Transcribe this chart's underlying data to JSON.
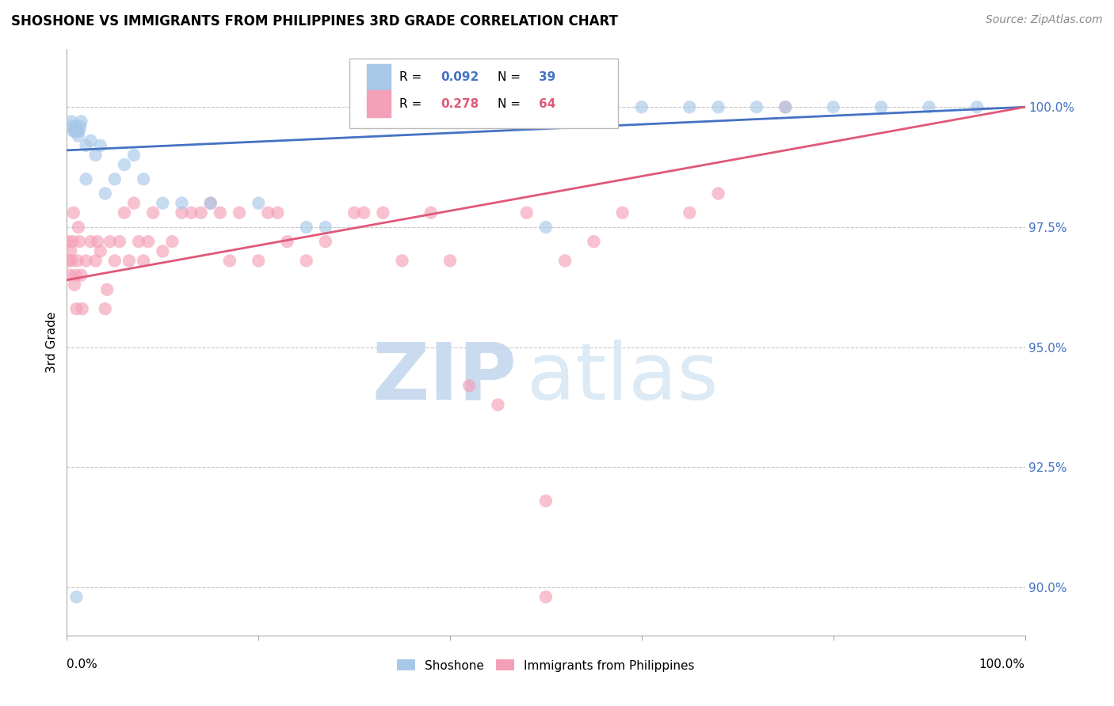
{
  "title": "SHOSHONE VS IMMIGRANTS FROM PHILIPPINES 3RD GRADE CORRELATION CHART",
  "source": "Source: ZipAtlas.com",
  "ylabel": "3rd Grade",
  "ymin": 89.0,
  "ymax": 101.2,
  "xmin": 0.0,
  "xmax": 100.0,
  "shoshone_color": "#a8c8e8",
  "philippines_color": "#f4a0b8",
  "shoshone_line_color": "#4472c4",
  "philippines_line_color": "#e05878",
  "shoshone_x": [
    0.5,
    0.6,
    0.7,
    0.8,
    0.9,
    1.0,
    1.1,
    1.2,
    1.3,
    1.4,
    1.5,
    2.0,
    2.5,
    3.0,
    3.5,
    5.0,
    6.0,
    7.0,
    8.0,
    55.0,
    60.0,
    65.0,
    68.0,
    72.0,
    75.0,
    80.0,
    85.0,
    90.0,
    95.0,
    2.0,
    4.0,
    10.0,
    12.0,
    15.0,
    20.0,
    25.0,
    27.0,
    1.0,
    50.0
  ],
  "shoshone_y": [
    99.7,
    99.6,
    99.5,
    99.5,
    99.6,
    99.5,
    99.5,
    99.4,
    99.5,
    99.6,
    99.7,
    99.2,
    99.3,
    99.0,
    99.2,
    98.5,
    98.8,
    99.0,
    98.5,
    100.0,
    100.0,
    100.0,
    100.0,
    100.0,
    100.0,
    100.0,
    100.0,
    100.0,
    100.0,
    98.5,
    98.2,
    98.0,
    98.0,
    98.0,
    98.0,
    97.5,
    97.5,
    89.8,
    97.5
  ],
  "philippines_x": [
    0.1,
    0.2,
    0.3,
    0.4,
    0.5,
    0.6,
    0.7,
    0.8,
    0.9,
    1.0,
    1.1,
    1.2,
    1.3,
    1.5,
    1.6,
    2.0,
    2.5,
    3.0,
    3.2,
    3.5,
    4.0,
    4.2,
    4.5,
    5.0,
    5.5,
    6.0,
    6.5,
    7.0,
    7.5,
    8.0,
    8.5,
    9.0,
    10.0,
    11.0,
    12.0,
    13.0,
    14.0,
    15.0,
    16.0,
    17.0,
    18.0,
    20.0,
    21.0,
    22.0,
    23.0,
    25.0,
    27.0,
    30.0,
    31.0,
    33.0,
    35.0,
    38.0,
    40.0,
    42.0,
    45.0,
    48.0,
    50.0,
    52.0,
    55.0,
    58.0,
    65.0,
    68.0,
    75.0,
    50.0
  ],
  "philippines_y": [
    97.2,
    96.8,
    96.5,
    97.0,
    96.8,
    97.2,
    97.8,
    96.3,
    96.5,
    95.8,
    96.8,
    97.5,
    97.2,
    96.5,
    95.8,
    96.8,
    97.2,
    96.8,
    97.2,
    97.0,
    95.8,
    96.2,
    97.2,
    96.8,
    97.2,
    97.8,
    96.8,
    98.0,
    97.2,
    96.8,
    97.2,
    97.8,
    97.0,
    97.2,
    97.8,
    97.8,
    97.8,
    98.0,
    97.8,
    96.8,
    97.8,
    96.8,
    97.8,
    97.8,
    97.2,
    96.8,
    97.2,
    97.8,
    97.8,
    97.8,
    96.8,
    97.8,
    96.8,
    94.2,
    93.8,
    97.8,
    89.8,
    96.8,
    97.2,
    97.8,
    97.8,
    98.2,
    100.0,
    91.8
  ],
  "shoshone_line_x0": 0.0,
  "shoshone_line_y0": 99.1,
  "shoshone_line_x1": 100.0,
  "shoshone_line_y1": 100.0,
  "philippines_line_x0": 0.0,
  "philippines_line_y0": 96.4,
  "philippines_line_x1": 100.0,
  "philippines_line_y1": 100.0,
  "watermark_zip": "ZIP",
  "watermark_atlas": "atlas",
  "grid_color": "#c8c8c8",
  "ytick_vals": [
    90.0,
    92.5,
    95.0,
    97.5,
    100.0
  ]
}
